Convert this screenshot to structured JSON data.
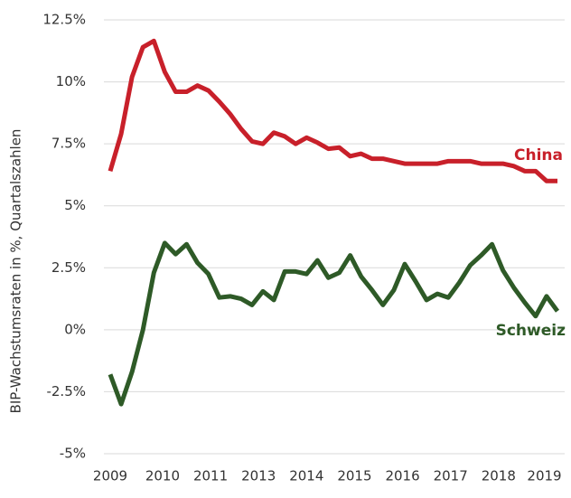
{
  "chart_data": {
    "type": "line",
    "y_label": "BIP-Wachstumsraten in %, Quartalszahlen",
    "x": [
      2009,
      2009.25,
      2009.5,
      2009.75,
      2010,
      2010.25,
      2010.5,
      2010.75,
      2011,
      2011.25,
      2011.5,
      2011.75,
      2012,
      2012.25,
      2012.5,
      2012.75,
      2013,
      2013.25,
      2013.5,
      2013.75,
      2014,
      2014.25,
      2014.5,
      2014.75,
      2015,
      2015.25,
      2015.5,
      2015.75,
      2016,
      2016.25,
      2016.5,
      2016.75,
      2017,
      2017.25,
      2017.5,
      2017.75,
      2018,
      2018.25,
      2018.5,
      2018.75,
      2019,
      2019.25
    ],
    "series": [
      {
        "name": "China",
        "color": "#c8202a",
        "values": [
          6.4,
          7.9,
          10.2,
          11.4,
          11.65,
          10.4,
          9.6,
          9.6,
          9.85,
          9.65,
          9.2,
          8.7,
          8.1,
          7.6,
          7.5,
          7.95,
          7.8,
          7.5,
          7.75,
          7.55,
          7.3,
          7.35,
          7.0,
          7.1,
          6.9,
          6.9,
          6.8,
          6.7,
          6.7,
          6.7,
          6.7,
          6.8,
          6.8,
          6.8,
          6.7,
          6.7,
          6.7,
          6.6,
          6.4,
          6.4,
          6.0,
          6.0
        ]
      },
      {
        "name": "Schweiz",
        "color": "#2e5a27",
        "values": [
          -1.8,
          -3.0,
          -1.7,
          0.0,
          2.3,
          3.5,
          3.05,
          3.45,
          2.7,
          2.25,
          1.3,
          1.35,
          1.25,
          1.0,
          1.55,
          1.2,
          2.35,
          2.35,
          2.25,
          2.8,
          2.1,
          2.3,
          3.0,
          2.15,
          1.6,
          1.0,
          1.6,
          2.65,
          1.95,
          1.2,
          1.45,
          1.3,
          1.9,
          2.6,
          3.0,
          3.45,
          2.4,
          1.7,
          1.1,
          0.55,
          1.35,
          0.75
        ]
      }
    ],
    "xlim": [
      2009,
      2019.25
    ],
    "xticks": [
      {
        "value": 2009,
        "label": "2009"
      },
      {
        "value": 2010.2,
        "label": "2010"
      },
      {
        "value": 2011.3,
        "label": "2011"
      },
      {
        "value": 2012.4,
        "label": "2013"
      },
      {
        "value": 2013.5,
        "label": "2014"
      },
      {
        "value": 2014.6,
        "label": "2015"
      },
      {
        "value": 2015.7,
        "label": "2016"
      },
      {
        "value": 2016.8,
        "label": "2017"
      },
      {
        "value": 2017.9,
        "label": "2018"
      },
      {
        "value": 2018.95,
        "label": "2019"
      }
    ],
    "ylim": [
      -5,
      12.5
    ],
    "yticks": [
      {
        "value": -5,
        "label": "-5%"
      },
      {
        "value": -2.5,
        "label": "-2.5%"
      },
      {
        "value": 0,
        "label": "0%"
      },
      {
        "value": 2.5,
        "label": "2.5%"
      },
      {
        "value": 5,
        "label": "5%"
      },
      {
        "value": 7.5,
        "label": "7.5%"
      },
      {
        "value": 10,
        "label": "10%"
      },
      {
        "value": 12.5,
        "label": "12.5%"
      }
    ],
    "grid": true
  }
}
